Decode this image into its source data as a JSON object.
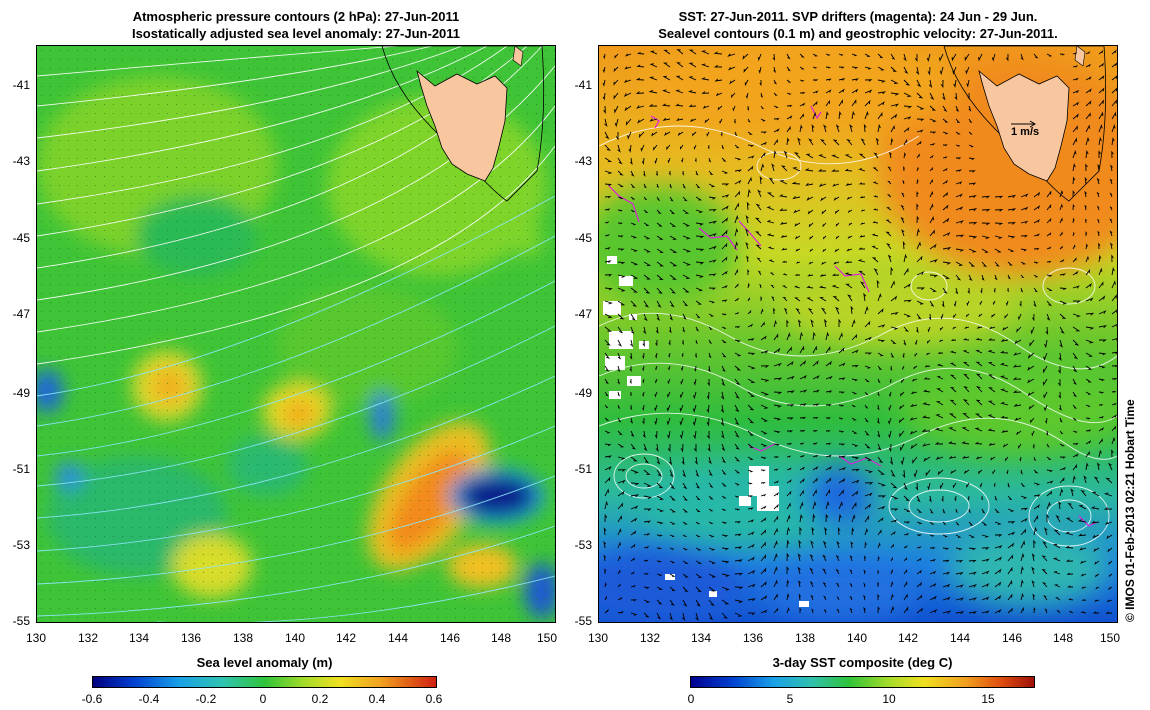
{
  "left_panel": {
    "title_line1": "Atmospheric pressure contours (2 hPa): 27-Jun-2011",
    "title_line2": "Isostatically adjusted sea level anomaly: 27-Jun-2011",
    "y_ticks": [
      "-41",
      "-43",
      "-45",
      "-47",
      "-49",
      "-51",
      "-53",
      "-55"
    ],
    "x_ticks": [
      "130",
      "132",
      "134",
      "136",
      "138",
      "140",
      "142",
      "144",
      "146",
      "148",
      "150"
    ],
    "colorbar_title": "Sea level anomaly (m)",
    "colorbar_ticks": [
      "-0.6",
      "-0.4",
      "-0.2",
      "0",
      "0.2",
      "0.4",
      "0.6"
    ]
  },
  "right_panel": {
    "title_line1": "SST: 27-Jun-2011. SVP drifters (magenta): 24 Jun - 29 Jun.",
    "title_line2": "Sealevel contours (0.1 m) and geostrophic velocity: 27-Jun-2011.",
    "y_ticks": [
      "-41",
      "-43",
      "-45",
      "-47",
      "-49",
      "-51",
      "-53",
      "-55"
    ],
    "x_ticks": [
      "130",
      "132",
      "134",
      "136",
      "138",
      "140",
      "142",
      "144",
      "146",
      "148",
      "150"
    ],
    "velocity_scale_label": "1 m/s",
    "colorbar_title": "3-day SST composite (deg C)",
    "colorbar_ticks": [
      "0",
      "5",
      "10",
      "15"
    ]
  },
  "credit": "© IMOS 01-Feb-2013 02:21 Hobart Time",
  "colors": {
    "land": "#f9c79f",
    "ocean_green": "#2fc43a",
    "ocean_orange": "#f0a020",
    "ocean_blue": "#1a66e0"
  }
}
